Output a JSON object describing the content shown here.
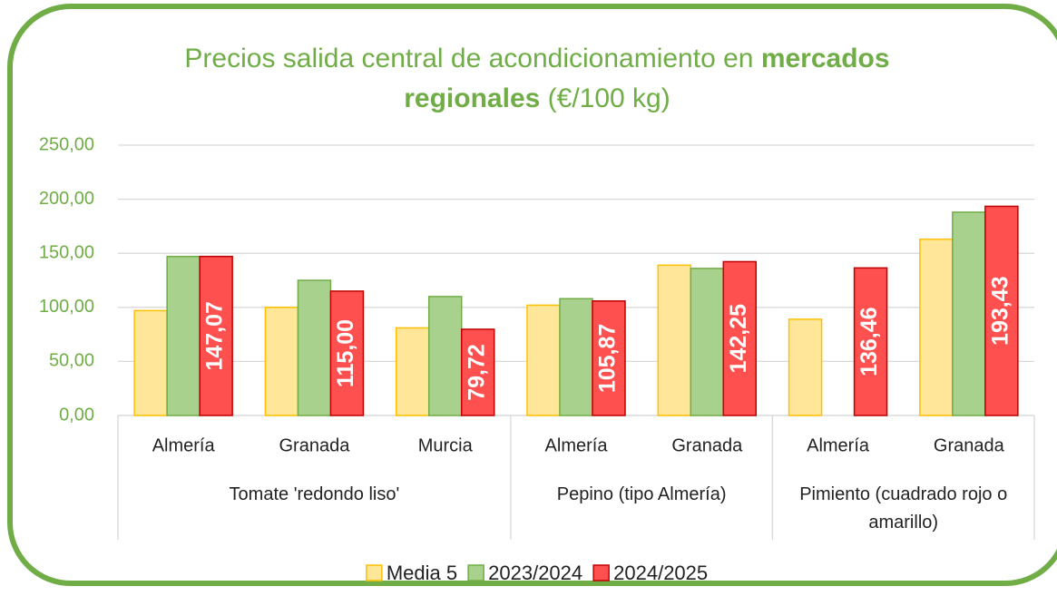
{
  "chart_data": {
    "type": "bar",
    "title": [
      {
        "text": "Precios salida central de acondicionamiento en ",
        "bold": false
      },
      {
        "text": "mercados",
        "bold": true
      },
      {
        "text": "regionales",
        "bold": true
      },
      {
        "text": " (€/100 kg)",
        "bold": false
      }
    ],
    "groups": [
      {
        "name": "Tomate 'redondo liso'",
        "categories": [
          "Almería",
          "Granada",
          "Murcia"
        ]
      },
      {
        "name": "Pepino (tipo Almería)",
        "categories": [
          "Almería",
          "Granada"
        ]
      },
      {
        "name": "Pimiento (cuadrado rojo o amarillo)",
        "categories": [
          "Almería",
          "Granada"
        ]
      }
    ],
    "series": [
      {
        "name": "Media 5",
        "color": "#ffe699",
        "stroke": "#ffc000",
        "values": [
          97,
          100,
          81,
          102,
          139,
          89,
          163
        ]
      },
      {
        "name": "2023/2024",
        "color": "#a9d18e",
        "stroke": "#70ad47",
        "values": [
          147,
          125,
          110,
          108,
          136,
          null,
          188
        ]
      },
      {
        "name": "2024/2025",
        "color": "#ff5050",
        "stroke": "#c00000",
        "values": [
          147.07,
          115.0,
          79.72,
          105.87,
          142.25,
          136.46,
          193.43
        ],
        "value_labels": [
          "147,07",
          "115,00",
          "79,72",
          "105,87",
          "142,25",
          "136,46",
          "193,43"
        ]
      }
    ],
    "ylim": [
      0,
      250
    ],
    "yticks": [
      {
        "value": 0,
        "label": "0,00"
      },
      {
        "value": 50,
        "label": "50,00"
      },
      {
        "value": 100,
        "label": "100,00"
      },
      {
        "value": 150,
        "label": "150,00"
      },
      {
        "value": 200,
        "label": "200,00"
      },
      {
        "value": 250,
        "label": "250,00"
      }
    ],
    "grid": true,
    "legend": "bottom"
  }
}
